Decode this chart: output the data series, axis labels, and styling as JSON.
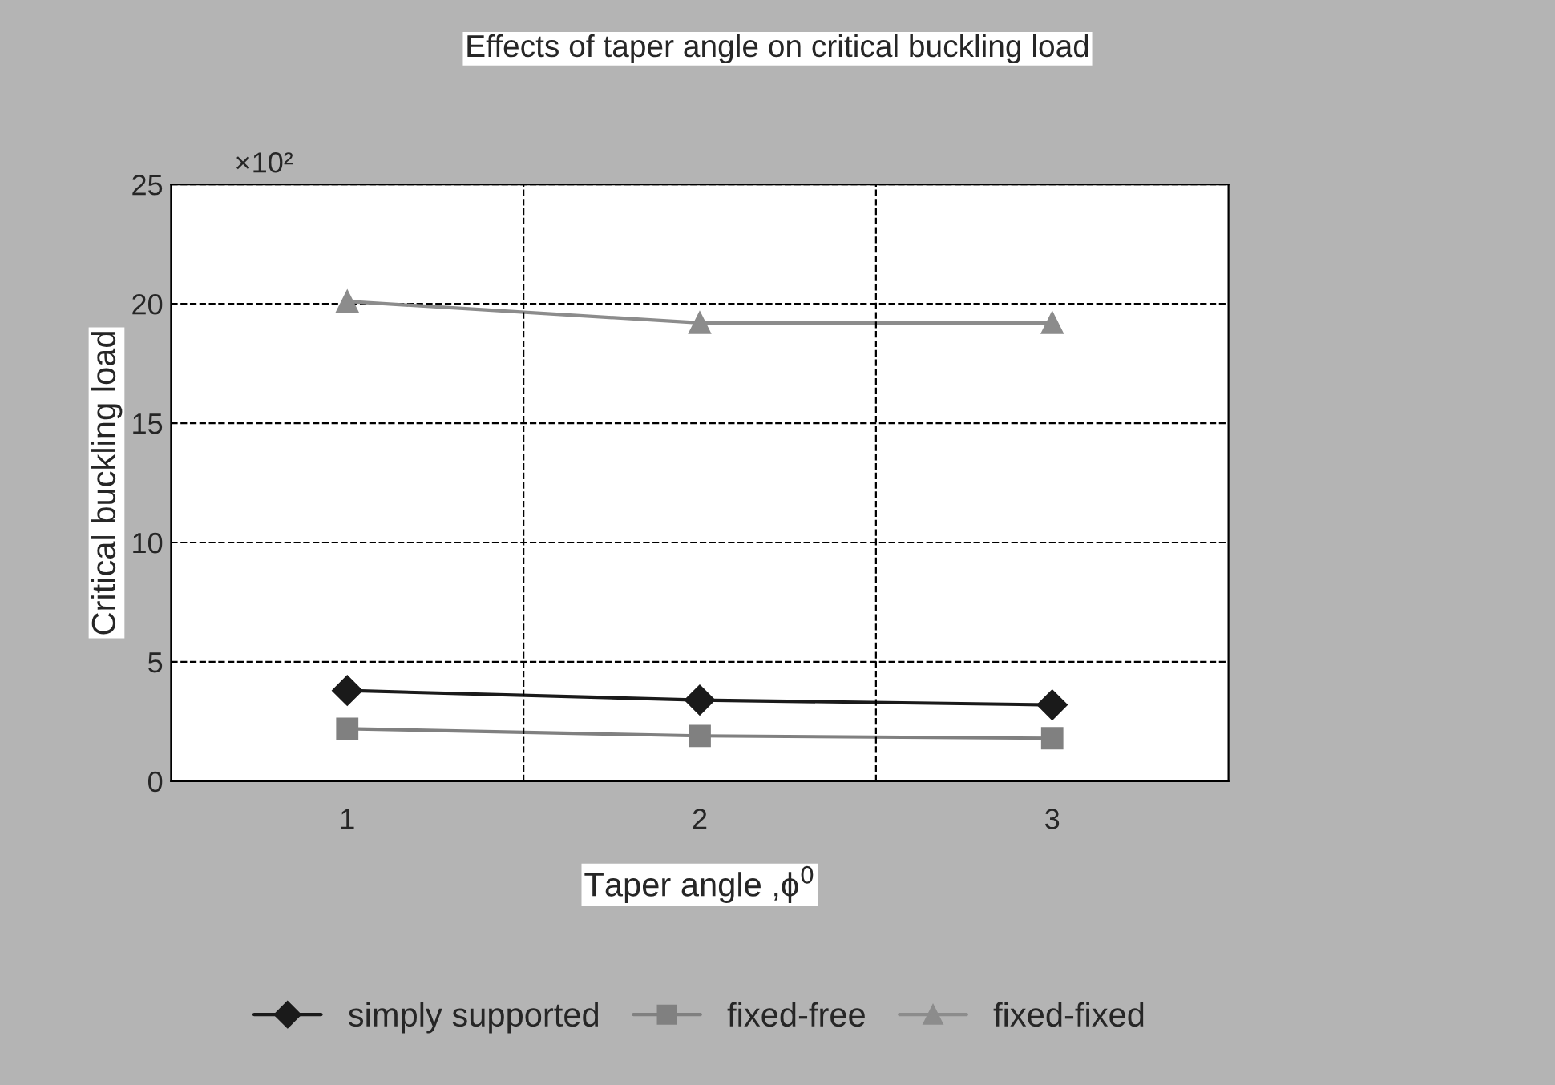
{
  "chart_data": {
    "type": "line",
    "title": "Effects of taper angle on critical buckling load",
    "xlabel": "Taper angle ,ϕ$^{0}$",
    "ylabel": "Critical buckling load",
    "categories": [
      "1",
      "2",
      "3"
    ],
    "series": [
      {
        "name": "simply supported",
        "color": "#1a1a1a",
        "marker": "diamond",
        "values": [
          3.8,
          3.4,
          3.2
        ]
      },
      {
        "name": "fixed-free",
        "color": "#808080",
        "marker": "square",
        "values": [
          2.2,
          1.9,
          1.8
        ]
      },
      {
        "name": "fixed-fixed",
        "color": "#8c8c8c",
        "marker": "triangle",
        "values": [
          20.1,
          19.2,
          19.2
        ]
      }
    ],
    "ylim": [
      0,
      25
    ],
    "yticks": [
      0,
      5,
      10,
      15,
      20,
      25
    ],
    "annotations": [
      "×10²"
    ],
    "grid": true,
    "legend": "bottom",
    "line_style": "solid"
  }
}
